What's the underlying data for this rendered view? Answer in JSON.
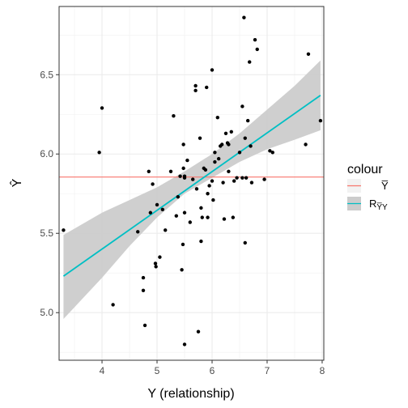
{
  "chart_data": {
    "type": "scatter",
    "xlabel": "Y (relationship)",
    "ylabel": "Ŷ",
    "xlim": [
      3.22,
      8.03
    ],
    "ylim": [
      4.7,
      6.93
    ],
    "x_ticks": [
      4,
      5,
      6,
      7,
      8
    ],
    "y_ticks": [
      5.0,
      5.5,
      6.0,
      6.5
    ],
    "x_tick_labels": [
      "4",
      "5",
      "6",
      "7",
      "8"
    ],
    "y_tick_labels": [
      "5.0",
      "5.5",
      "6.0",
      "6.5"
    ],
    "grid": true,
    "legend": {
      "title": "colour",
      "placement": "right",
      "entries": [
        {
          "label": "Y̅",
          "color": "#F8766D"
        },
        {
          "label": "R",
          "subscript": "Y̅Y",
          "color": "#00BFC4"
        }
      ]
    },
    "colors": {
      "mean_line": "#F8766D",
      "fit_line": "#00BFC4",
      "band": "#cccccc",
      "points": "#000000"
    },
    "mean_line": {
      "y": 5.855
    },
    "fit_line": {
      "x": [
        3.3,
        7.97
      ],
      "y": [
        5.23,
        6.37
      ]
    },
    "confidence_band": {
      "x": [
        3.3,
        4.0,
        4.5,
        5.0,
        5.5,
        6.0,
        6.5,
        7.0,
        7.5,
        7.97
      ],
      "lower": [
        4.96,
        5.22,
        5.42,
        5.6,
        5.75,
        5.85,
        5.95,
        6.03,
        6.09,
        6.15
      ],
      "upper": [
        5.49,
        5.63,
        5.71,
        5.79,
        5.89,
        6.0,
        6.13,
        6.28,
        6.43,
        6.59
      ]
    },
    "points": [
      [
        3.3,
        5.52
      ],
      [
        3.95,
        6.01
      ],
      [
        4.0,
        6.29
      ],
      [
        4.2,
        5.05
      ],
      [
        4.65,
        5.51
      ],
      [
        4.75,
        5.22
      ],
      [
        4.75,
        5.14
      ],
      [
        4.78,
        4.92
      ],
      [
        4.85,
        5.89
      ],
      [
        4.88,
        5.63
      ],
      [
        4.92,
        5.81
      ],
      [
        4.97,
        5.31
      ],
      [
        4.98,
        5.29
      ],
      [
        5.0,
        5.68
      ],
      [
        5.05,
        5.35
      ],
      [
        5.1,
        5.65
      ],
      [
        5.15,
        5.52
      ],
      [
        5.25,
        5.89
      ],
      [
        5.3,
        6.24
      ],
      [
        5.35,
        5.61
      ],
      [
        5.38,
        5.73
      ],
      [
        5.42,
        5.86
      ],
      [
        5.45,
        5.27
      ],
      [
        5.47,
        5.43
      ],
      [
        5.48,
        6.06
      ],
      [
        5.48,
        5.91
      ],
      [
        5.5,
        5.86
      ],
      [
        5.5,
        5.63
      ],
      [
        5.5,
        5.85
      ],
      [
        5.5,
        4.8
      ],
      [
        5.55,
        5.96
      ],
      [
        5.6,
        5.57
      ],
      [
        5.65,
        5.84
      ],
      [
        5.7,
        6.43
      ],
      [
        5.7,
        6.4
      ],
      [
        5.72,
        5.78
      ],
      [
        5.75,
        4.88
      ],
      [
        5.78,
        6.1
      ],
      [
        5.8,
        5.66
      ],
      [
        5.8,
        5.45
      ],
      [
        5.82,
        5.6
      ],
      [
        5.85,
        5.91
      ],
      [
        5.88,
        5.9
      ],
      [
        5.9,
        6.42
      ],
      [
        5.92,
        5.6
      ],
      [
        5.92,
        5.75
      ],
      [
        5.95,
        5.8
      ],
      [
        6.0,
        5.83
      ],
      [
        6.0,
        6.53
      ],
      [
        6.02,
        5.71
      ],
      [
        6.05,
        5.95
      ],
      [
        6.05,
        6.01
      ],
      [
        6.1,
        6.23
      ],
      [
        6.12,
        5.97
      ],
      [
        6.15,
        6.05
      ],
      [
        6.18,
        6.06
      ],
      [
        6.2,
        5.82
      ],
      [
        6.22,
        5.59
      ],
      [
        6.25,
        6.13
      ],
      [
        6.28,
        6.07
      ],
      [
        6.3,
        5.89
      ],
      [
        6.3,
        6.06
      ],
      [
        6.35,
        6.14
      ],
      [
        6.38,
        5.6
      ],
      [
        6.4,
        5.83
      ],
      [
        6.45,
        5.85
      ],
      [
        6.5,
        6.01
      ],
      [
        6.55,
        6.3
      ],
      [
        6.55,
        5.85
      ],
      [
        6.58,
        6.86
      ],
      [
        6.6,
        6.1
      ],
      [
        6.6,
        5.44
      ],
      [
        6.62,
        5.85
      ],
      [
        6.65,
        6.21
      ],
      [
        6.68,
        6.58
      ],
      [
        6.7,
        6.05
      ],
      [
        6.72,
        5.82
      ],
      [
        6.78,
        6.72
      ],
      [
        6.82,
        6.66
      ],
      [
        6.95,
        5.84
      ],
      [
        7.05,
        6.02
      ],
      [
        7.1,
        6.01
      ],
      [
        7.7,
        6.06
      ],
      [
        7.75,
        6.63
      ],
      [
        7.97,
        6.21
      ]
    ]
  }
}
